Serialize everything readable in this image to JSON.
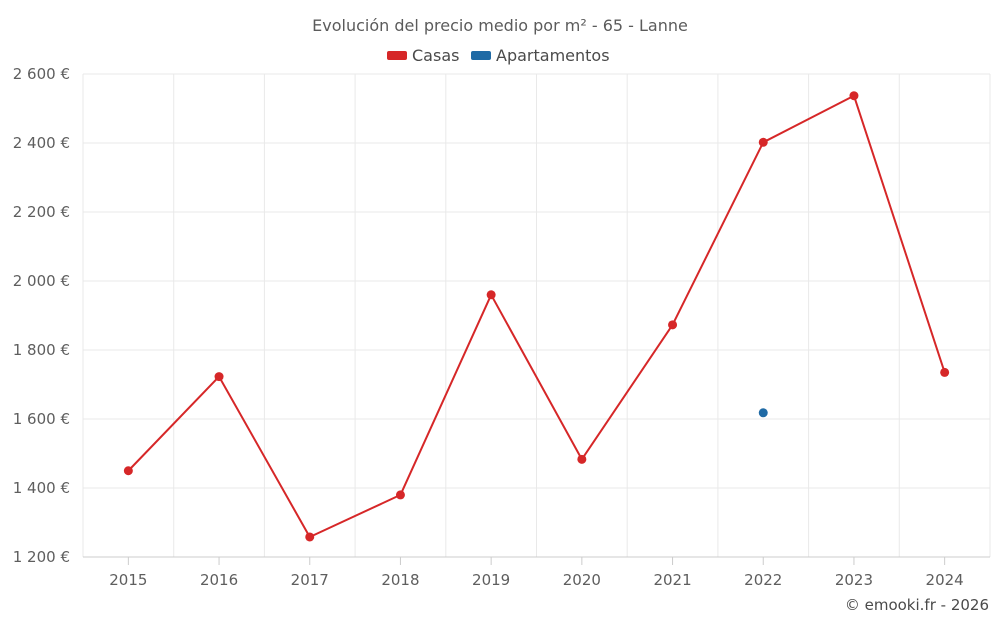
{
  "chart_data": {
    "type": "line",
    "title": "Evolución del precio medio por m² - 65 - Lanne",
    "categories": [
      "2015",
      "2016",
      "2017",
      "2018",
      "2019",
      "2020",
      "2021",
      "2022",
      "2023",
      "2024"
    ],
    "series": [
      {
        "name": "Casas",
        "color": "#d62728",
        "values": [
          1450,
          1723,
          1258,
          1380,
          1960,
          1483,
          1873,
          2402,
          2537,
          1735
        ]
      },
      {
        "name": "Apartamentos",
        "color": "#1f6aa5",
        "values": [
          null,
          null,
          null,
          null,
          null,
          null,
          null,
          1618,
          null,
          null
        ]
      }
    ],
    "y_ticks": [
      1200,
      1400,
      1600,
      1800,
      2000,
      2200,
      2400,
      2600
    ],
    "y_tick_labels": [
      "1 200 €",
      "1 400 €",
      "1 600 €",
      "1 800 €",
      "2 000 €",
      "2 200 €",
      "2 400 €",
      "2 600 €"
    ],
    "ylim": [
      1200,
      2600
    ],
    "xlabel": "",
    "ylabel": "",
    "grid": true,
    "legend_position": "top-center"
  },
  "credit": "© emooki.fr - 2026"
}
